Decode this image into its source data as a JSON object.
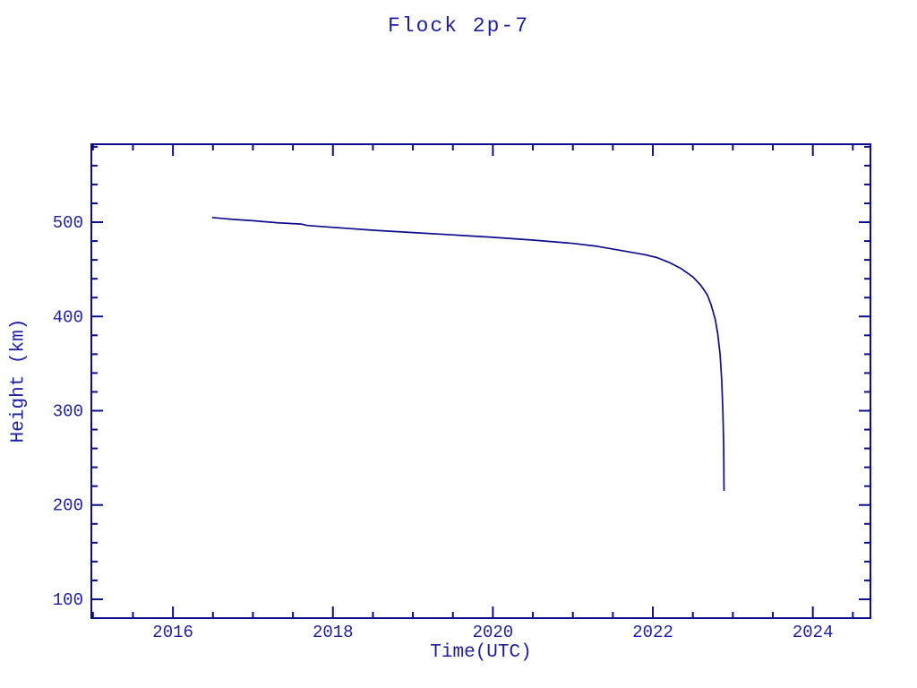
{
  "chart_data": {
    "type": "line",
    "title": "Flock 2p-7",
    "xlabel": "Time(UTC)",
    "ylabel": "Height (km)",
    "xlim": [
      2014.98,
      2024.72
    ],
    "ylim": [
      80,
      582.7
    ],
    "x_major_ticks": [
      2016,
      2018,
      2020,
      2022,
      2024
    ],
    "x_minor_step": 0.5,
    "y_major_ticks": [
      100,
      200,
      300,
      400,
      500
    ],
    "y_minor_step": 20,
    "grid": false,
    "legend": "none",
    "line_color": "#0d0d8c",
    "axis_color": "#0d0d8c",
    "text_color": "#1e1ea0",
    "background_color": "#ffffff",
    "series": [
      {
        "name": "Flock 2p-7 height",
        "points": [
          [
            2016.49,
            505.0
          ],
          [
            2016.75,
            503.0
          ],
          [
            2017.0,
            501.5
          ],
          [
            2017.3,
            499.5
          ],
          [
            2017.6,
            498.0
          ],
          [
            2017.68,
            496.5
          ],
          [
            2018.0,
            494.5
          ],
          [
            2018.5,
            491.5
          ],
          [
            2019.0,
            489.0
          ],
          [
            2019.5,
            486.5
          ],
          [
            2020.0,
            484.0
          ],
          [
            2020.5,
            481.0
          ],
          [
            2021.0,
            477.5
          ],
          [
            2021.3,
            474.5
          ],
          [
            2021.6,
            470.0
          ],
          [
            2021.9,
            465.5
          ],
          [
            2022.05,
            462.5
          ],
          [
            2022.2,
            457.5
          ],
          [
            2022.35,
            451.0
          ],
          [
            2022.5,
            442.0
          ],
          [
            2022.6,
            433.0
          ],
          [
            2022.68,
            423.0
          ],
          [
            2022.73,
            412.0
          ],
          [
            2022.78,
            397.0
          ],
          [
            2022.81,
            382.0
          ],
          [
            2022.84,
            360.0
          ],
          [
            2022.86,
            333.0
          ],
          [
            2022.875,
            300.0
          ],
          [
            2022.885,
            263.0
          ],
          [
            2022.89,
            215.0
          ]
        ]
      }
    ]
  }
}
